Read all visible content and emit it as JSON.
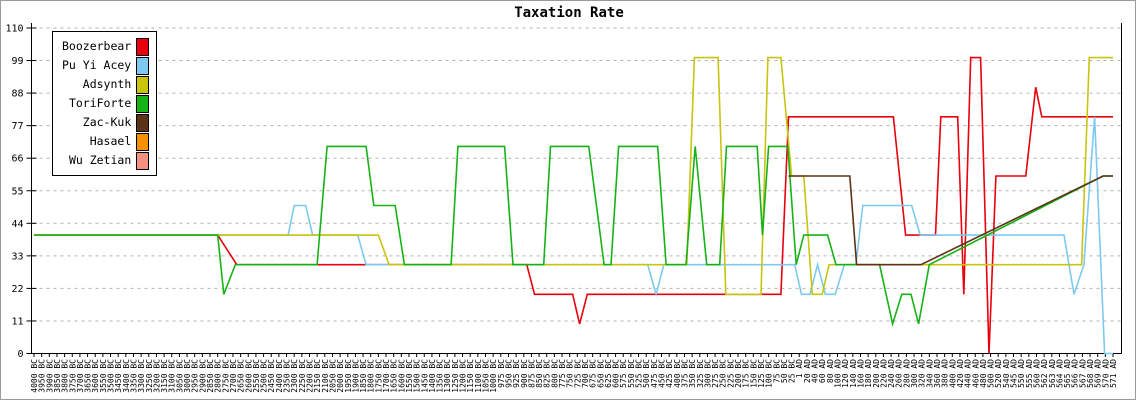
{
  "title": "Taxation Rate",
  "chart_data": {
    "type": "line",
    "title": "Taxation Rate",
    "ylabel": "",
    "xlabel": "",
    "ylim": [
      0,
      110
    ],
    "yticks": [
      0,
      11,
      22,
      33,
      44,
      55,
      66,
      77,
      88,
      99,
      110
    ],
    "grid": "horizontal dashed gray lines at each y tick",
    "legend_position": "top-left box",
    "axis_color": "#000000",
    "grid_color": "#b3b3b3",
    "x_labels": [
      "4000 BC",
      "3950 BC",
      "3900 BC",
      "3850 BC",
      "3800 BC",
      "3750 BC",
      "3700 BC",
      "3650 BC",
      "3600 BC",
      "3550 BC",
      "3500 BC",
      "3450 BC",
      "3400 BC",
      "3350 BC",
      "3300 BC",
      "3250 BC",
      "3200 BC",
      "3150 BC",
      "3100 BC",
      "3050 BC",
      "3000 BC",
      "2950 BC",
      "2900 BC",
      "2850 BC",
      "2800 BC",
      "2750 BC",
      "2700 BC",
      "2650 BC",
      "2600 BC",
      "2550 BC",
      "2500 BC",
      "2450 BC",
      "2400 BC",
      "2350 BC",
      "2300 BC",
      "2250 BC",
      "2200 BC",
      "2150 BC",
      "2100 BC",
      "2050 BC",
      "2000 BC",
      "1950 BC",
      "1900 BC",
      "1850 BC",
      "1800 BC",
      "1750 BC",
      "1700 BC",
      "1650 BC",
      "1600 BC",
      "1550 BC",
      "1500 BC",
      "1450 BC",
      "1400 BC",
      "1350 BC",
      "1300 BC",
      "1250 BC",
      "1200 BC",
      "1150 BC",
      "1100 BC",
      "1050 BC",
      "1000 BC",
      "975 BC",
      "950 BC",
      "925 BC",
      "900 BC",
      "875 BC",
      "850 BC",
      "825 BC",
      "800 BC",
      "775 BC",
      "750 BC",
      "725 BC",
      "700 BC",
      "675 BC",
      "650 BC",
      "625 BC",
      "600 BC",
      "575 BC",
      "550 BC",
      "525 BC",
      "500 BC",
      "475 BC",
      "450 BC",
      "425 BC",
      "400 BC",
      "375 BC",
      "350 BC",
      "325 BC",
      "300 BC",
      "275 BC",
      "250 BC",
      "225 BC",
      "200 BC",
      "175 BC",
      "150 BC",
      "125 BC",
      "100 BC",
      "75 BC",
      "50 BC",
      "25 BC",
      "1 AD",
      "20 AD",
      "40 AD",
      "60 AD",
      "80 AD",
      "100 AD",
      "120 AD",
      "140 AD",
      "160 AD",
      "180 AD",
      "200 AD",
      "220 AD",
      "240 AD",
      "260 AD",
      "280 AD",
      "300 AD",
      "320 AD",
      "340 AD",
      "360 AD",
      "380 AD",
      "400 AD",
      "420 AD",
      "440 AD",
      "460 AD",
      "480 AD",
      "500 AD",
      "520 AD",
      "540 AD",
      "545 AD",
      "550 AD",
      "555 AD",
      "560 AD",
      "562 AD",
      "563 AD",
      "564 AD",
      "565 AD",
      "566 AD",
      "567 AD",
      "568 AD",
      "569 AD",
      "570 AD",
      "571 AD"
    ],
    "points_format": "[x_label_index, taxation_rate_percent]",
    "series": [
      {
        "name": "Boozerbear",
        "color": "#e8000d",
        "points": [
          [
            0,
            40
          ],
          [
            24,
            40
          ],
          [
            26.5,
            30
          ],
          [
            64.4,
            30
          ],
          [
            65.4,
            20
          ],
          [
            70.4,
            20
          ],
          [
            71.3,
            10
          ],
          [
            72.3,
            20
          ],
          [
            97.6,
            20
          ],
          [
            98.6,
            80
          ],
          [
            112.3,
            80
          ],
          [
            113.9,
            40
          ],
          [
            117.8,
            40
          ],
          [
            118.5,
            80
          ],
          [
            120.7,
            80
          ],
          [
            121.5,
            20
          ],
          [
            122.4,
            100
          ],
          [
            123.7,
            100
          ],
          [
            124.8,
            0
          ],
          [
            125.7,
            60
          ],
          [
            129.6,
            60
          ],
          [
            130.9,
            90
          ],
          [
            131.7,
            80
          ],
          [
            141,
            80
          ]
        ]
      },
      {
        "name": "Pu Yi Acey",
        "color": "#7ec9f0",
        "points": [
          [
            0,
            40
          ],
          [
            33.2,
            40
          ],
          [
            34,
            50
          ],
          [
            35.5,
            50
          ],
          [
            36.4,
            40
          ],
          [
            42.3,
            40
          ],
          [
            43.4,
            30
          ],
          [
            80.2,
            30
          ],
          [
            81.3,
            20
          ],
          [
            82.3,
            30
          ],
          [
            99.4,
            30
          ],
          [
            100.3,
            20
          ],
          [
            101.4,
            20
          ],
          [
            102.4,
            30
          ],
          [
            103.4,
            20
          ],
          [
            104.7,
            20
          ],
          [
            105.9,
            30
          ],
          [
            107.4,
            30
          ],
          [
            108.3,
            50
          ],
          [
            114.7,
            50
          ],
          [
            115.8,
            40
          ],
          [
            134.6,
            40
          ],
          [
            135.9,
            20
          ],
          [
            137.2,
            30
          ],
          [
            138.6,
            80
          ],
          [
            139.9,
            0
          ],
          [
            141,
            0
          ]
        ]
      },
      {
        "name": "Adsynth",
        "color": "#c9c40e",
        "points": [
          [
            0,
            40
          ],
          [
            45,
            40
          ],
          [
            46.4,
            30
          ],
          [
            85.3,
            30
          ],
          [
            86.3,
            100
          ],
          [
            89.4,
            100
          ],
          [
            90.4,
            20
          ],
          [
            95,
            20
          ],
          [
            95.9,
            100
          ],
          [
            97.6,
            100
          ],
          [
            99,
            60
          ],
          [
            100.6,
            60
          ],
          [
            101.7,
            20
          ],
          [
            103,
            20
          ],
          [
            103.9,
            30
          ],
          [
            136.9,
            30
          ],
          [
            137.9,
            100
          ],
          [
            141,
            100
          ]
        ]
      },
      {
        "name": "ToriForte",
        "color": "#17b217",
        "points": [
          [
            0,
            40
          ],
          [
            24,
            40
          ],
          [
            24.8,
            20
          ],
          [
            26.3,
            30
          ],
          [
            37,
            30
          ],
          [
            38.3,
            70
          ],
          [
            43.4,
            70
          ],
          [
            44.4,
            50
          ],
          [
            47.2,
            50
          ],
          [
            48.4,
            30
          ],
          [
            54.5,
            30
          ],
          [
            55.4,
            70
          ],
          [
            61.5,
            70
          ],
          [
            62.6,
            30
          ],
          [
            66.6,
            30
          ],
          [
            67.5,
            70
          ],
          [
            72.5,
            70
          ],
          [
            74.5,
            30
          ],
          [
            75.4,
            30
          ],
          [
            76.4,
            70
          ],
          [
            81.5,
            70
          ],
          [
            82.6,
            30
          ],
          [
            85.2,
            30
          ],
          [
            86.4,
            70
          ],
          [
            87.9,
            30
          ],
          [
            89.6,
            30
          ],
          [
            90.5,
            70
          ],
          [
            94.5,
            70
          ],
          [
            95.2,
            40
          ],
          [
            96,
            70
          ],
          [
            98.5,
            70
          ],
          [
            99.6,
            30
          ],
          [
            100.6,
            40
          ],
          [
            103.7,
            40
          ],
          [
            104.8,
            30
          ],
          [
            110.5,
            30
          ],
          [
            112.2,
            10
          ],
          [
            113.4,
            20
          ],
          [
            114.6,
            20
          ],
          [
            115.6,
            10
          ],
          [
            117,
            30
          ],
          [
            139.7,
            60
          ],
          [
            141,
            60
          ]
        ]
      },
      {
        "name": "Zac-Kuk",
        "color": "#5c3317",
        "points": [
          [
            98.6,
            60
          ],
          [
            106.6,
            60
          ],
          [
            107.5,
            30
          ],
          [
            115.9,
            30
          ],
          [
            139.7,
            60
          ],
          [
            141,
            60
          ]
        ]
      },
      {
        "name": "Hasael",
        "color": "#f59105",
        "points": [],
        "note": "legend entry only - no line visible in plot"
      },
      {
        "name": "Wu Zetian",
        "color": "#f4917f",
        "points": [],
        "note": "legend entry only - no line visible in plot"
      }
    ],
    "draw_order": [
      "Boozerbear",
      "Pu Yi Acey",
      "Adsynth",
      "ToriForte",
      "Zac-Kuk"
    ]
  }
}
